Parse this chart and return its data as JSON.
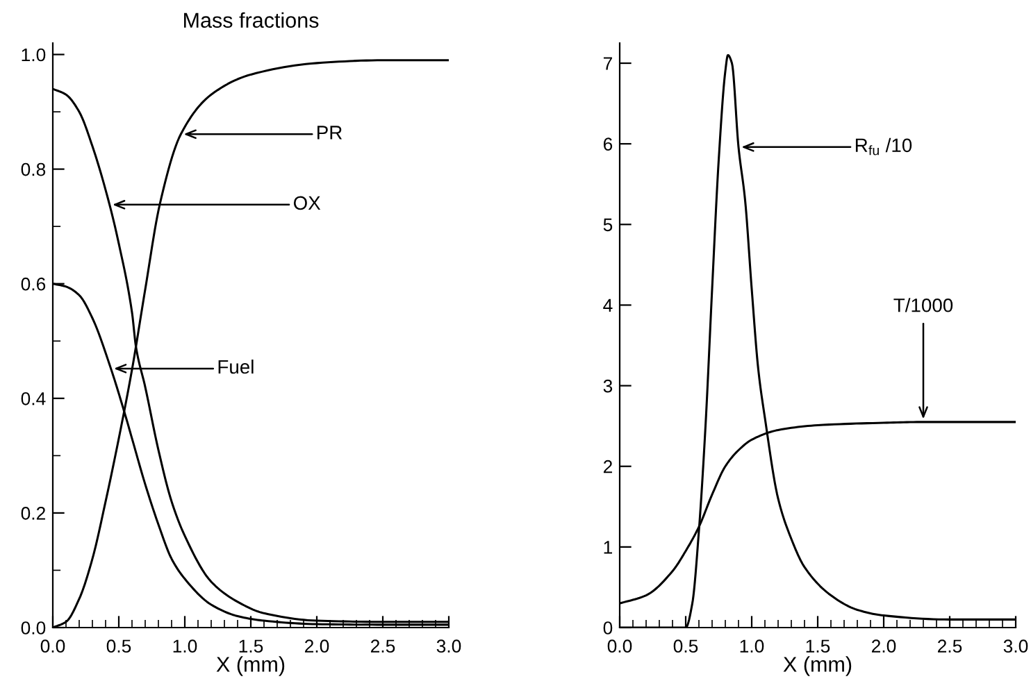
{
  "chart_data": [
    {
      "type": "line",
      "title": "Mass fractions",
      "xlabel": "X (mm)",
      "xlim": [
        0,
        3
      ],
      "xticks": [
        {
          "value": 0,
          "label": "0.0"
        },
        0.5,
        {
          "value": 1,
          "label": "1.0"
        },
        1.5,
        {
          "value": 2,
          "label": "2.0"
        },
        2.5,
        {
          "value": 3,
          "label": "3.0"
        }
      ],
      "ylim": [
        0,
        1.02
      ],
      "yticks": [
        {
          "value": 0,
          "label": "0.0"
        },
        0.2,
        0.4,
        0.6,
        0.8,
        {
          "value": 1,
          "label": "1.0"
        }
      ],
      "grid": false,
      "legend": false,
      "series": [
        {
          "color": "#000000",
          "x": [
            0,
            0.1,
            0.2,
            0.3,
            0.43,
            0.5,
            0.6,
            0.63,
            0.7,
            0.8,
            0.9,
            1.0,
            1.2,
            1.4,
            1.6,
            2.0,
            2.5,
            3.0
          ],
          "values": [
            0.94,
            0.93,
            0.9,
            0.84,
            0.738,
            0.67,
            0.55,
            0.49,
            0.42,
            0.31,
            0.22,
            0.16,
            0.08,
            0.045,
            0.025,
            0.012,
            0.01,
            0.01
          ]
        },
        {
          "color": "#000000",
          "x": [
            0,
            0.1,
            0.2,
            0.3,
            0.44,
            0.55,
            0.6,
            0.7,
            0.8,
            0.9,
            1.0,
            1.2,
            1.4,
            1.6,
            2.0,
            2.5,
            3.0
          ],
          "values": [
            0.6,
            0.595,
            0.58,
            0.54,
            0.452,
            0.37,
            0.33,
            0.25,
            0.18,
            0.12,
            0.085,
            0.04,
            0.02,
            0.012,
            0.006,
            0.005,
            0.005
          ]
        },
        {
          "color": "#000000",
          "x": [
            0,
            0.1,
            0.2,
            0.3,
            0.4,
            0.5,
            0.6,
            0.7,
            0.81,
            0.97,
            1.2,
            1.5,
            2.0,
            2.5,
            3.0
          ],
          "values": [
            0,
            0.01,
            0.05,
            0.12,
            0.22,
            0.33,
            0.45,
            0.59,
            0.738,
            0.861,
            0.93,
            0.965,
            0.985,
            0.99,
            0.99
          ]
        }
      ],
      "annotations": [
        {
          "text": "PR",
          "x": 0.97,
          "y": 0.861
        },
        {
          "text": "OX",
          "x": 0.43,
          "y": 0.738
        },
        {
          "text": "Fuel",
          "x": 0.44,
          "y": 0.452
        }
      ]
    },
    {
      "type": "line",
      "xlabel": "X (mm)",
      "xlim": [
        0,
        3
      ],
      "xticks": [
        {
          "value": 0,
          "label": "0.0"
        },
        0.5,
        {
          "value": 1,
          "label": "1.0"
        },
        1.5,
        {
          "value": 2,
          "label": "2.0"
        },
        2.5,
        {
          "value": 3,
          "label": "3.0"
        }
      ],
      "ylim": [
        0,
        7.25
      ],
      "yticks": [
        0,
        1,
        2,
        3,
        4,
        5,
        6,
        7
      ],
      "grid": false,
      "legend": false,
      "series": [
        {
          "color": "#000000",
          "x": [
            0,
            0.5,
            0.55,
            0.6,
            0.65,
            0.7,
            0.75,
            0.8,
            0.82,
            0.85,
            0.9,
            0.95,
            1.0,
            1.05,
            1.1,
            1.2,
            1.3,
            1.4,
            1.6,
            1.8,
            2.0,
            2.5,
            3.0
          ],
          "values": [
            0,
            0,
            0.3,
            1.2,
            2.5,
            4.2,
            5.8,
            6.9,
            7.1,
            7.0,
            5.96,
            5.3,
            4.2,
            3.2,
            2.6,
            1.6,
            1.1,
            0.75,
            0.4,
            0.22,
            0.15,
            0.1,
            0.1
          ]
        },
        {
          "color": "#000000",
          "x": [
            0,
            0.2,
            0.4,
            0.5,
            0.6,
            0.7,
            0.8,
            0.9,
            1.0,
            1.2,
            1.5,
            2.0,
            2.3,
            3.0
          ],
          "values": [
            0.3,
            0.4,
            0.7,
            0.95,
            1.25,
            1.65,
            2.0,
            2.2,
            2.33,
            2.45,
            2.51,
            2.54,
            2.55,
            2.55
          ]
        }
      ],
      "annotations": [
        {
          "text": "R$_{fu}$ /10",
          "x": 0.9,
          "y": 5.96
        },
        {
          "text": "T/1000",
          "x": 2.3,
          "y": 2.55
        }
      ]
    }
  ]
}
